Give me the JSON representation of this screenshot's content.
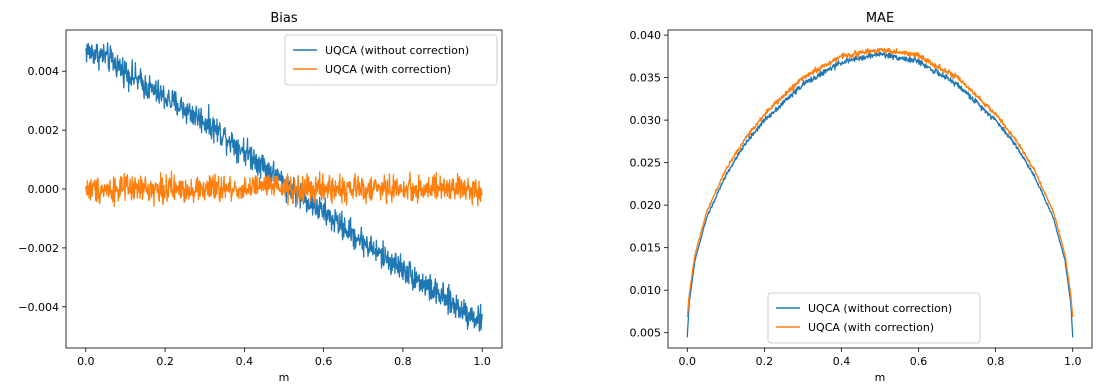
{
  "chart_data": [
    {
      "type": "line",
      "title": "Bias",
      "xlabel": "m",
      "ylabel": "",
      "xlim": [
        -0.05,
        1.05
      ],
      "ylim": [
        -0.0054,
        0.0054
      ],
      "xticks": [
        0.0,
        0.2,
        0.4,
        0.6,
        0.8,
        1.0
      ],
      "xtick_labels": [
        "0.0",
        "0.2",
        "0.4",
        "0.6",
        "0.8",
        "1.0"
      ],
      "yticks": [
        -0.004,
        -0.002,
        0.0,
        0.002,
        0.004
      ],
      "ytick_labels": [
        "−0.004",
        "−0.002",
        "0.000",
        "0.002",
        "0.004"
      ],
      "legend_position": "top-right",
      "grid": false,
      "series": [
        {
          "name": "UQCA (without correction)",
          "color": "#1f77b4",
          "x": [
            0.0,
            0.05,
            0.1,
            0.15,
            0.2,
            0.25,
            0.3,
            0.35,
            0.4,
            0.45,
            0.5,
            0.55,
            0.6,
            0.65,
            0.7,
            0.75,
            0.8,
            0.85,
            0.9,
            0.95,
            1.0
          ],
          "y": [
            0.0047,
            0.0045,
            0.004,
            0.0035,
            0.0031,
            0.0027,
            0.0023,
            0.0018,
            0.0013,
            0.0008,
            0.0002,
            -0.0003,
            -0.0008,
            -0.0013,
            -0.0018,
            -0.0023,
            -0.0027,
            -0.0032,
            -0.0037,
            -0.0041,
            -0.0045
          ],
          "noise": 0.00035
        },
        {
          "name": "UQCA (with correction)",
          "color": "#ff7f0e",
          "x": [
            0.0,
            0.05,
            0.1,
            0.15,
            0.2,
            0.25,
            0.3,
            0.35,
            0.4,
            0.45,
            0.5,
            0.55,
            0.6,
            0.65,
            0.7,
            0.75,
            0.8,
            0.85,
            0.9,
            0.95,
            1.0
          ],
          "y": [
            0.0,
            0.0,
            0.0,
            0.0,
            0.0,
            0.0,
            0.0,
            0.0,
            0.0,
            0.0001,
            0.0,
            0.0,
            0.0,
            0.0,
            0.0,
            0.0,
            0.0,
            0.0,
            0.0,
            0.0,
            0.0
          ],
          "noise": 0.00035
        }
      ]
    },
    {
      "type": "line",
      "title": "MAE",
      "xlabel": "m",
      "ylabel": "",
      "xlim": [
        -0.05,
        1.05
      ],
      "ylim": [
        0.0032,
        0.0406
      ],
      "xticks": [
        0.0,
        0.2,
        0.4,
        0.6,
        0.8,
        1.0
      ],
      "xtick_labels": [
        "0.0",
        "0.2",
        "0.4",
        "0.6",
        "0.8",
        "1.0"
      ],
      "yticks": [
        0.005,
        0.01,
        0.015,
        0.02,
        0.025,
        0.03,
        0.035,
        0.04
      ],
      "ytick_labels": [
        "0.005",
        "0.010",
        "0.015",
        "0.020",
        "0.025",
        "0.030",
        "0.035",
        "0.040"
      ],
      "legend_position": "lower-center",
      "grid": false,
      "series": [
        {
          "name": "UQCA (without correction)",
          "color": "#1f77b4",
          "x": [
            0.0,
            0.005,
            0.02,
            0.05,
            0.1,
            0.15,
            0.2,
            0.3,
            0.4,
            0.5,
            0.6,
            0.7,
            0.8,
            0.85,
            0.9,
            0.95,
            0.98,
            0.995,
            1.0
          ],
          "y": [
            0.0045,
            0.0085,
            0.0135,
            0.0185,
            0.0235,
            0.0272,
            0.03,
            0.0342,
            0.0368,
            0.0378,
            0.0369,
            0.0342,
            0.03,
            0.0272,
            0.0235,
            0.0185,
            0.0135,
            0.0085,
            0.0045
          ],
          "noise": 0.00025
        },
        {
          "name": "UQCA (with correction)",
          "color": "#ff7f0e",
          "x": [
            0.0,
            0.005,
            0.02,
            0.05,
            0.1,
            0.15,
            0.2,
            0.3,
            0.4,
            0.5,
            0.6,
            0.7,
            0.8,
            0.85,
            0.9,
            0.95,
            0.98,
            0.995,
            1.0
          ],
          "y": [
            0.0068,
            0.0095,
            0.0142,
            0.0192,
            0.0242,
            0.0278,
            0.0307,
            0.035,
            0.0375,
            0.0383,
            0.0376,
            0.035,
            0.0307,
            0.0278,
            0.0242,
            0.0192,
            0.0142,
            0.0095,
            0.0068
          ],
          "noise": 0.00025
        }
      ]
    }
  ]
}
